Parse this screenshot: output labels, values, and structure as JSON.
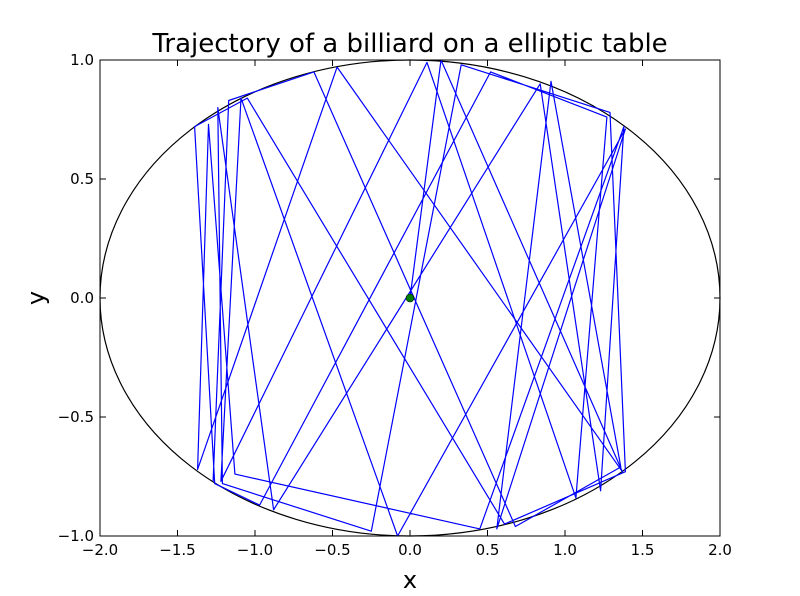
{
  "chart_data": {
    "type": "line",
    "title": "Trajectory of a billiard on a elliptic table",
    "xlabel": "x",
    "ylabel": "y",
    "xlim": [
      -2.0,
      2.0
    ],
    "ylim": [
      -1.0,
      1.0
    ],
    "xticks": [
      "−2.0",
      "−1.5",
      "−1.0",
      "−0.5",
      "0.0",
      "0.5",
      "1.0",
      "1.5",
      "2.0"
    ],
    "yticks": [
      "−1.0",
      "−0.5",
      "0.0",
      "0.5",
      "1.0"
    ],
    "grid": false,
    "ellipse": {
      "a": 2.0,
      "b": 1.0,
      "color": "#000000"
    },
    "start_point": {
      "x": 0.0,
      "y": 0.0,
      "color": "#008000"
    },
    "series": [
      {
        "color": "#0000ff",
        "x": [
          0.0,
          0.2,
          1.37,
          -0.47,
          -1.37,
          -1.3,
          -1.13,
          0.45,
          1.38,
          1.23,
          0.84,
          -0.88,
          -1.24,
          -1.21,
          -0.25,
          0.33,
          1.29,
          1.39,
          0.61,
          -1.05,
          -1.39,
          -1.26,
          -0.97,
          0.52,
          1.27,
          1.07,
          0.11,
          -1.22,
          -1.09,
          -0.08,
          1.39,
          0.56,
          0.91,
          1.36,
          0.68,
          -0.62,
          -1.17,
          -1.27
        ],
        "y": [
          0.0,
          1.0,
          -0.73,
          0.97,
          -0.72,
          0.73,
          -0.74,
          -0.97,
          0.72,
          -0.81,
          0.9,
          -0.89,
          0.8,
          -0.78,
          -0.98,
          0.98,
          0.78,
          -0.73,
          -0.95,
          0.84,
          0.72,
          -0.78,
          -0.87,
          0.95,
          0.76,
          -0.84,
          0.99,
          -0.77,
          0.84,
          -1.0,
          0.71,
          -0.97,
          0.91,
          -0.71,
          -0.96,
          0.95,
          0.83,
          -0.77
        ]
      }
    ]
  }
}
